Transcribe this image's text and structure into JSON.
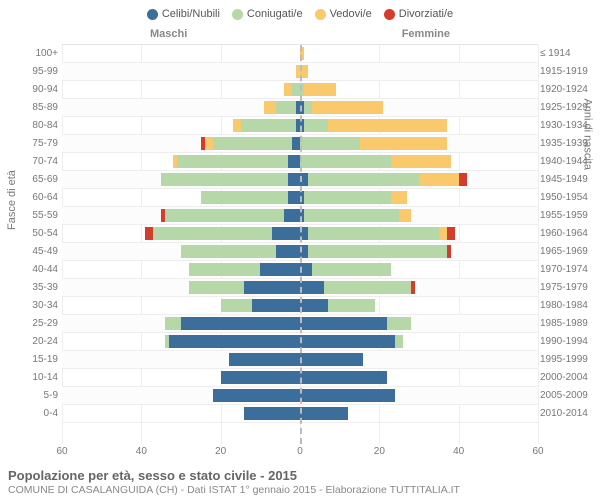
{
  "legend": [
    {
      "label": "Celibi/Nubili",
      "color": "#3b6e9b"
    },
    {
      "label": "Coniugati/e",
      "color": "#b6d7a8"
    },
    {
      "label": "Vedovi/e",
      "color": "#f9c96b"
    },
    {
      "label": "Divorziati/e",
      "color": "#d43c2c"
    }
  ],
  "headers": {
    "left": "Maschi",
    "right": "Femmine"
  },
  "y_left_title": "Fasce di età",
  "y_right_title": "Anni di nascita",
  "x_ticks": [
    60,
    40,
    20,
    0,
    20,
    40,
    60
  ],
  "x_max": 60,
  "rows": [
    {
      "age": "100+",
      "year": "≤ 1914",
      "m": [
        0,
        0,
        0,
        0
      ],
      "f": [
        0,
        0,
        1,
        0
      ]
    },
    {
      "age": "95-99",
      "year": "1915-1919",
      "m": [
        0,
        0,
        1,
        0
      ],
      "f": [
        0,
        0,
        2,
        0
      ]
    },
    {
      "age": "90-94",
      "year": "1920-1924",
      "m": [
        0,
        2,
        2,
        0
      ],
      "f": [
        0,
        1,
        8,
        0
      ]
    },
    {
      "age": "85-89",
      "year": "1925-1929",
      "m": [
        1,
        5,
        3,
        0
      ],
      "f": [
        1,
        2,
        18,
        0
      ]
    },
    {
      "age": "80-84",
      "year": "1930-1934",
      "m": [
        1,
        14,
        2,
        0
      ],
      "f": [
        1,
        6,
        30,
        0
      ]
    },
    {
      "age": "75-79",
      "year": "1935-1939",
      "m": [
        2,
        20,
        2,
        1
      ],
      "f": [
        0,
        15,
        22,
        0
      ]
    },
    {
      "age": "70-74",
      "year": "1940-1944",
      "m": [
        3,
        28,
        1,
        0
      ],
      "f": [
        0,
        23,
        15,
        0
      ]
    },
    {
      "age": "65-69",
      "year": "1945-1949",
      "m": [
        3,
        32,
        0,
        0
      ],
      "f": [
        2,
        28,
        10,
        2
      ]
    },
    {
      "age": "60-64",
      "year": "1950-1954",
      "m": [
        3,
        22,
        0,
        0
      ],
      "f": [
        1,
        22,
        4,
        0
      ]
    },
    {
      "age": "55-59",
      "year": "1955-1959",
      "m": [
        4,
        30,
        0,
        1
      ],
      "f": [
        1,
        24,
        3,
        0
      ]
    },
    {
      "age": "50-54",
      "year": "1960-1964",
      "m": [
        7,
        30,
        0,
        2
      ],
      "f": [
        2,
        33,
        2,
        2
      ]
    },
    {
      "age": "45-49",
      "year": "1965-1969",
      "m": [
        6,
        24,
        0,
        0
      ],
      "f": [
        2,
        35,
        0,
        1
      ]
    },
    {
      "age": "40-44",
      "year": "1970-1974",
      "m": [
        10,
        18,
        0,
        0
      ],
      "f": [
        3,
        20,
        0,
        0
      ]
    },
    {
      "age": "35-39",
      "year": "1975-1979",
      "m": [
        14,
        14,
        0,
        0
      ],
      "f": [
        6,
        22,
        0,
        1
      ]
    },
    {
      "age": "30-34",
      "year": "1980-1984",
      "m": [
        12,
        8,
        0,
        0
      ],
      "f": [
        7,
        12,
        0,
        0
      ]
    },
    {
      "age": "25-29",
      "year": "1985-1989",
      "m": [
        30,
        4,
        0,
        0
      ],
      "f": [
        22,
        6,
        0,
        0
      ]
    },
    {
      "age": "20-24",
      "year": "1990-1994",
      "m": [
        33,
        1,
        0,
        0
      ],
      "f": [
        24,
        2,
        0,
        0
      ]
    },
    {
      "age": "15-19",
      "year": "1995-1999",
      "m": [
        18,
        0,
        0,
        0
      ],
      "f": [
        16,
        0,
        0,
        0
      ]
    },
    {
      "age": "10-14",
      "year": "2000-2004",
      "m": [
        20,
        0,
        0,
        0
      ],
      "f": [
        22,
        0,
        0,
        0
      ]
    },
    {
      "age": "5-9",
      "year": "2005-2009",
      "m": [
        22,
        0,
        0,
        0
      ],
      "f": [
        24,
        0,
        0,
        0
      ]
    },
    {
      "age": "0-4",
      "year": "2010-2014",
      "m": [
        14,
        0,
        0,
        0
      ],
      "f": [
        12,
        0,
        0,
        0
      ]
    }
  ],
  "caption": {
    "title": "Popolazione per età, sesso e stato civile - 2015",
    "sub": "COMUNE DI CASALANGUIDA (CH) - Dati ISTAT 1° gennaio 2015 - Elaborazione TUTTITALIA.IT"
  },
  "colors": {
    "grid": "#eeeeee",
    "series": [
      "#3b6e9b",
      "#b6d7a8",
      "#f9c96b",
      "#d43c2c"
    ]
  }
}
